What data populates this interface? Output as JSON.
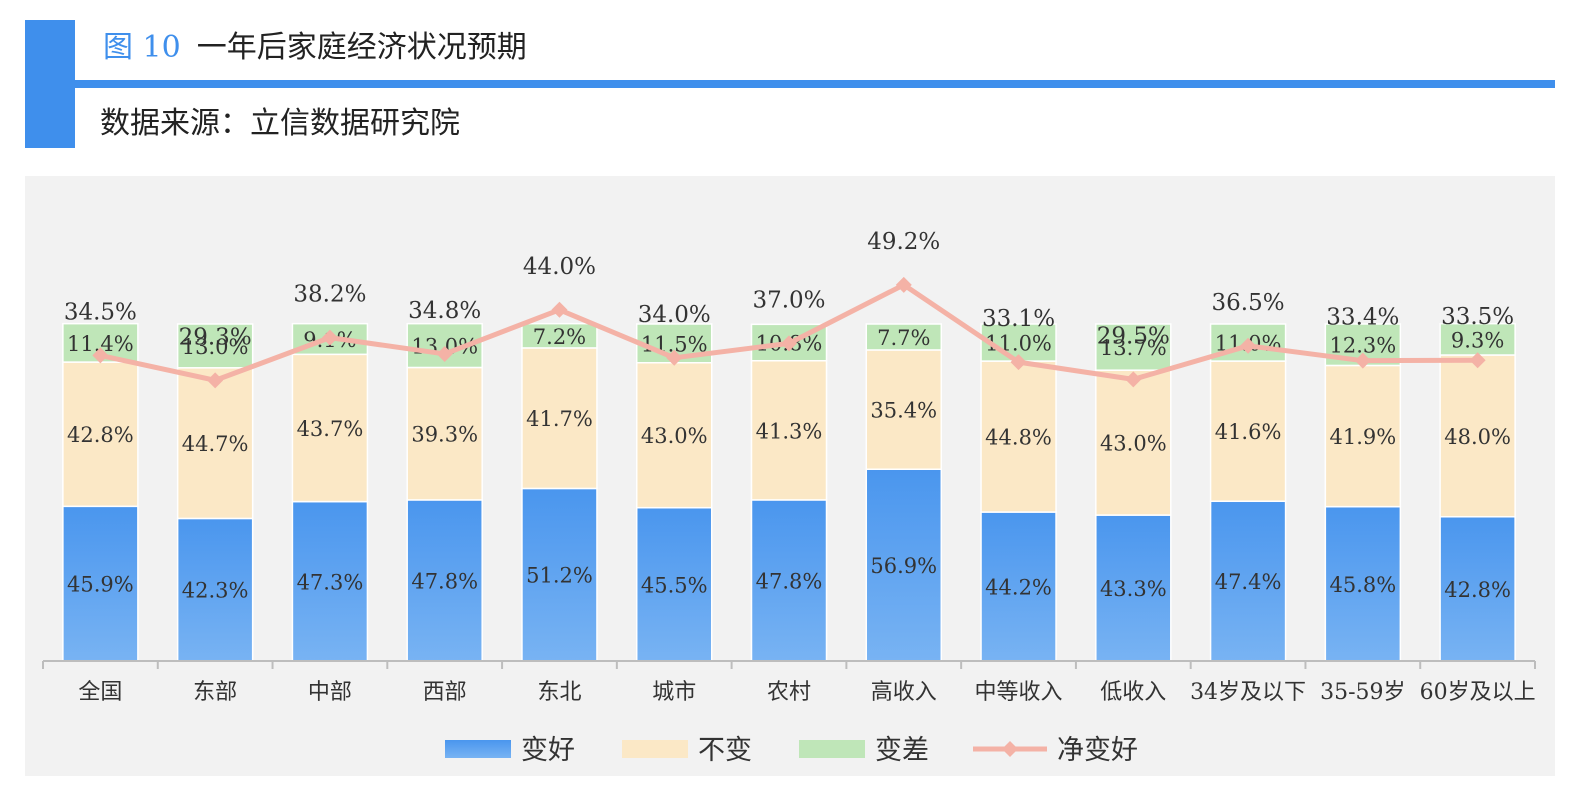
{
  "header": {
    "figure_number": "图 10",
    "title": "一年后家庭经济状况预期",
    "source": "数据来源：立信数据研究院"
  },
  "colors": {
    "accent": "#3f8fec",
    "better": "#4a96ee",
    "better_light": "#78b3f3",
    "same": "#fbe8c6",
    "worse": "#bfe6b8",
    "net": "#f4b2a6"
  },
  "chart_data": {
    "type": "bar",
    "stacked": true,
    "categories": [
      "全国",
      "东部",
      "中部",
      "西部",
      "东北",
      "城市",
      "农村",
      "高收入",
      "中等收入",
      "低收入",
      "34岁及以下",
      "35-59岁",
      "60岁及以上"
    ],
    "series": [
      {
        "name": "变好",
        "type": "bar",
        "values": [
          45.9,
          42.3,
          47.3,
          47.8,
          51.2,
          45.5,
          47.8,
          56.9,
          44.2,
          43.3,
          47.4,
          45.8,
          42.8
        ]
      },
      {
        "name": "不变",
        "type": "bar",
        "values": [
          42.8,
          44.7,
          43.7,
          39.3,
          41.7,
          43.0,
          41.3,
          35.4,
          44.8,
          43.0,
          41.6,
          41.9,
          48.0
        ]
      },
      {
        "name": "变差",
        "type": "bar",
        "values": [
          11.4,
          13.0,
          9.1,
          13.0,
          7.2,
          11.5,
          10.8,
          7.7,
          11.0,
          13.7,
          11.0,
          12.3,
          9.3
        ]
      },
      {
        "name": "净变好",
        "type": "line",
        "values": [
          34.5,
          29.3,
          38.2,
          34.8,
          44.0,
          34.0,
          37.0,
          49.2,
          33.1,
          29.5,
          36.5,
          33.4,
          33.5
        ]
      }
    ],
    "unit": "%",
    "legend_position": "bottom",
    "grid": false
  }
}
